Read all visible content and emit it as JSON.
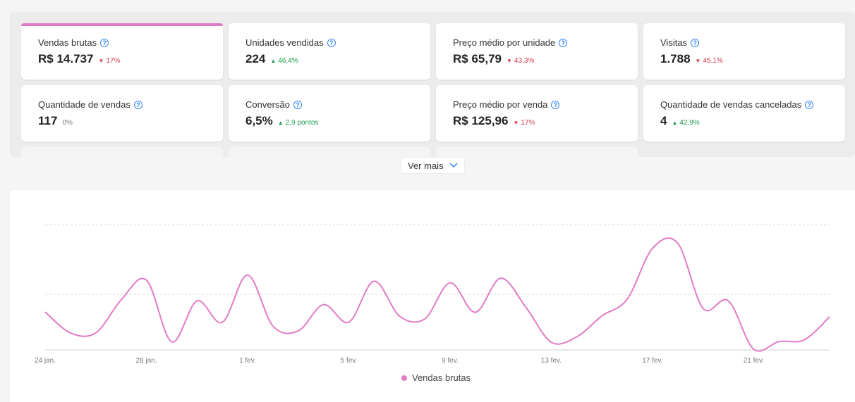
{
  "metrics": [
    {
      "title": "Vendas brutas",
      "value": "R$ 14.737",
      "delta": "17%",
      "trend": "down",
      "selected": true
    },
    {
      "title": "Unidades vendidas",
      "value": "224",
      "delta": "46,4%",
      "trend": "up"
    },
    {
      "title": "Preço médio por unidade",
      "value": "R$ 65,79",
      "delta": "43,3%",
      "trend": "down"
    },
    {
      "title": "Visitas",
      "value": "1.788",
      "delta": "45,1%",
      "trend": "down"
    },
    {
      "title": "Quantidade de vendas",
      "value": "117",
      "delta": "0%",
      "trend": "neutral"
    },
    {
      "title": "Conversão",
      "value": "6,5%",
      "delta": "2,9 pontos",
      "trend": "up"
    },
    {
      "title": "Preço médio por venda",
      "value": "R$ 125,96",
      "delta": "17%",
      "trend": "down"
    },
    {
      "title": "Quantidade de vendas canceladas",
      "value": "4",
      "delta": "42,9%",
      "trend": "up"
    }
  ],
  "help_glyph": "?",
  "see_more_label": "Ver mais",
  "colors": {
    "accent": "#e27bc7",
    "up": "#1e9a4f",
    "down": "#d3384c",
    "help": "#3483fa"
  },
  "chart_data": {
    "type": "line",
    "x": [
      "24 jan.",
      "25 jan.",
      "26 jan.",
      "27 jan.",
      "28 jan.",
      "29 jan.",
      "30 jan.",
      "31 jan.",
      "1 fev.",
      "2 fev.",
      "3 fev.",
      "4 fev.",
      "5 fev.",
      "6 fev.",
      "7 fev.",
      "8 fev.",
      "9 fev.",
      "10 fev.",
      "11 fev.",
      "12 fev.",
      "13 fev.",
      "14 fev.",
      "15 fev.",
      "16 fev.",
      "17 fev.",
      "18 fev.",
      "19 fev.",
      "20 fev.",
      "21 fev.",
      "22 fev.",
      "23 fev.",
      "24 fev."
    ],
    "x_tick_labels": [
      "24 jan.",
      "28 jan.",
      "1 fev.",
      "5 fev.",
      "9 fev.",
      "13 fev.",
      "17 fev.",
      "21 fev."
    ],
    "series": [
      {
        "name": "Vendas brutas",
        "values": [
          272,
          122,
          122,
          358,
          502,
          58,
          352,
          198,
          537,
          172,
          136,
          325,
          199,
          493,
          243,
          222,
          482,
          270,
          515,
          306,
          55,
          93,
          244,
          364,
          729,
          766,
          298,
          352,
          5,
          60,
          72,
          238
        ]
      }
    ],
    "ylim": [
      0,
      900
    ],
    "grid": true,
    "legend_position": "bottom"
  }
}
